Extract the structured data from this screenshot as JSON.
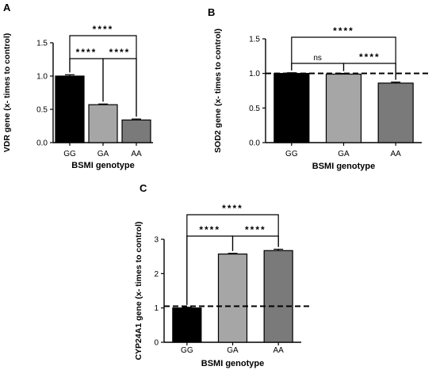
{
  "chart_data": [
    {
      "panel": "A",
      "type": "bar",
      "categories": [
        "GG",
        "GA",
        "AA"
      ],
      "values": [
        1.0,
        0.57,
        0.34
      ],
      "errors": [
        0.02,
        0.01,
        0.015
      ],
      "colors": [
        "#000000",
        "#a6a6a6",
        "#7a7a7a"
      ],
      "xlabel": "BSMI genotype",
      "ylabel": "VDR gene (x- times to control)",
      "ylim": [
        0,
        1.5
      ],
      "yticks": [
        "0.0",
        "0.5",
        "1.0",
        "1.5"
      ],
      "reference_line": null,
      "comparisons": [
        {
          "from": 0,
          "to": 1,
          "label": "****",
          "level": 1
        },
        {
          "from": 1,
          "to": 2,
          "label": "****",
          "level": 1
        },
        {
          "from": 0,
          "to": 2,
          "label": "****",
          "level": 2
        }
      ]
    },
    {
      "panel": "B",
      "type": "bar",
      "categories": [
        "GG",
        "GA",
        "AA"
      ],
      "values": [
        1.0,
        0.99,
        0.86
      ],
      "errors": [
        0.01,
        0.01,
        0.015
      ],
      "colors": [
        "#000000",
        "#a6a6a6",
        "#7a7a7a"
      ],
      "xlabel": "BSMI genotype",
      "ylabel": "SOD2 gene (x- times to control)",
      "ylim": [
        0,
        1.5
      ],
      "yticks": [
        "0.0",
        "0.5",
        "1.0",
        "1.5"
      ],
      "reference_line": 1.0,
      "comparisons": [
        {
          "from": 0,
          "to": 1,
          "label": "ns",
          "level": 1
        },
        {
          "from": 1,
          "to": 2,
          "label": "****",
          "level": 1
        },
        {
          "from": 0,
          "to": 2,
          "label": "****",
          "level": 2
        }
      ]
    },
    {
      "panel": "C",
      "type": "bar",
      "categories": [
        "GG",
        "GA",
        "AA"
      ],
      "values": [
        1.0,
        2.57,
        2.67
      ],
      "errors": [
        0.02,
        0.02,
        0.04
      ],
      "colors": [
        "#000000",
        "#a6a6a6",
        "#7a7a7a"
      ],
      "xlabel": "BSMI genotype",
      "ylabel": "CYP24A1 gene (x- times to control)",
      "ylim": [
        0,
        3
      ],
      "yticks": [
        "0",
        "1",
        "2",
        "3"
      ],
      "reference_line": 1.05,
      "comparisons": [
        {
          "from": 0,
          "to": 1,
          "label": "****",
          "level": 1
        },
        {
          "from": 1,
          "to": 2,
          "label": "****",
          "level": 1
        },
        {
          "from": 0,
          "to": 2,
          "label": "****",
          "level": 2
        }
      ]
    }
  ]
}
